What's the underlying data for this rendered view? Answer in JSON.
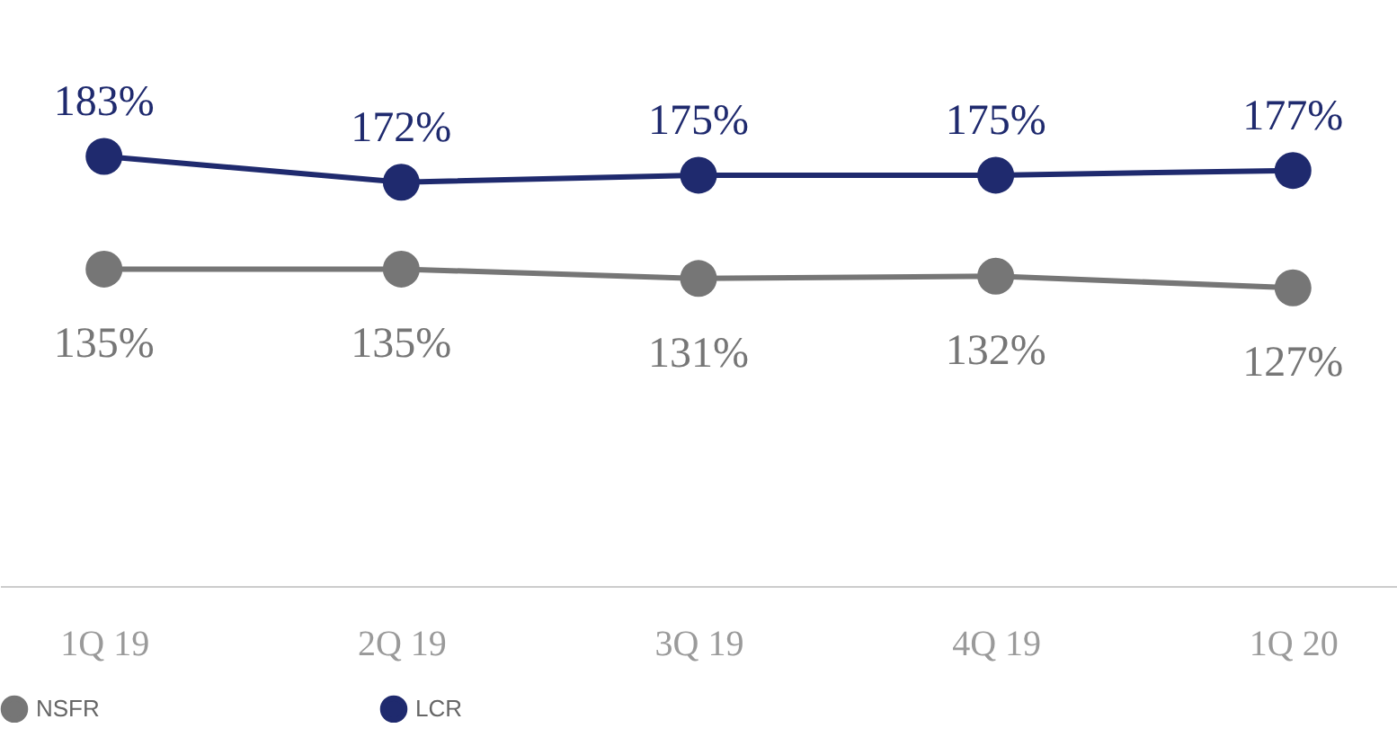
{
  "chart_data": {
    "type": "line",
    "categories": [
      "1Q 19",
      "2Q 19",
      "3Q 19",
      "4Q 19",
      "1Q 20"
    ],
    "series": [
      {
        "name": "NSFR",
        "color": "#767676",
        "values": [
          135,
          135,
          131,
          132,
          127
        ],
        "value_labels": [
          "135%",
          "135%",
          "131%",
          "132%",
          "127%"
        ]
      },
      {
        "name": "LCR",
        "color": "#1f2a6e",
        "values": [
          183,
          172,
          175,
          175,
          177
        ],
        "value_labels": [
          "183%",
          "172%",
          "175%",
          "175%",
          "177%"
        ]
      }
    ],
    "marker": "circle",
    "line_style": "solid",
    "legend": "bottom",
    "grid": false,
    "tick_labels": "x"
  }
}
